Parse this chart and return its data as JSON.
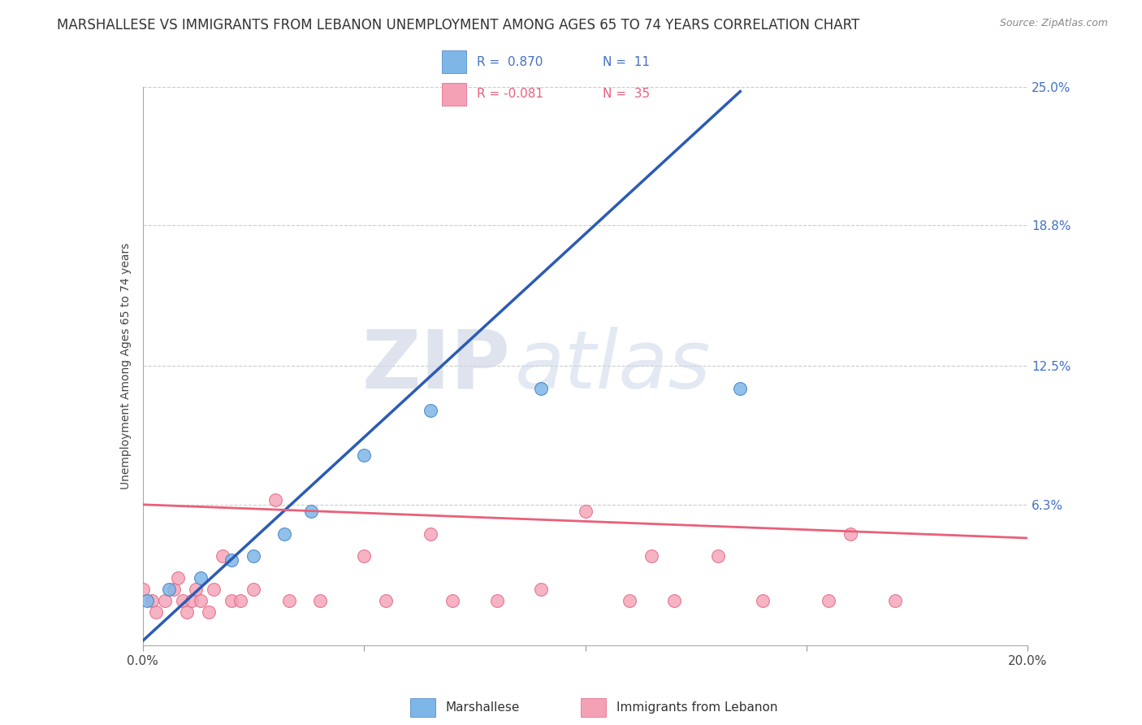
{
  "title": "MARSHALLESE VS IMMIGRANTS FROM LEBANON UNEMPLOYMENT AMONG AGES 65 TO 74 YEARS CORRELATION CHART",
  "source": "Source: ZipAtlas.com",
  "ylabel": "Unemployment Among Ages 65 to 74 years",
  "watermark_zip": "ZIP",
  "watermark_atlas": "atlas",
  "xlim": [
    0.0,
    0.2
  ],
  "ylim": [
    0.0,
    0.25
  ],
  "ytick_right_vals": [
    0.0,
    0.063,
    0.125,
    0.188,
    0.25
  ],
  "ytick_right_labels": [
    "",
    "6.3%",
    "12.5%",
    "18.8%",
    "25.0%"
  ],
  "marshallese_color": "#7EB6E8",
  "lebanon_color": "#F4A0B5",
  "trendline_blue": "#2B5BB5",
  "trendline_pink": "#E8607A",
  "legend_R1": "R =  0.870",
  "legend_N1": "N =  11",
  "legend_R2": "R = -0.081",
  "legend_N2": "N =  35",
  "marshallese_x": [
    0.001,
    0.006,
    0.013,
    0.02,
    0.025,
    0.032,
    0.038,
    0.05,
    0.065,
    0.09,
    0.135
  ],
  "marshallese_y": [
    0.02,
    0.025,
    0.03,
    0.038,
    0.04,
    0.05,
    0.06,
    0.085,
    0.105,
    0.115,
    0.115
  ],
  "lebanon_x": [
    0.0,
    0.002,
    0.003,
    0.005,
    0.007,
    0.008,
    0.009,
    0.01,
    0.011,
    0.012,
    0.013,
    0.015,
    0.016,
    0.018,
    0.02,
    0.022,
    0.025,
    0.03,
    0.033,
    0.04,
    0.05,
    0.055,
    0.065,
    0.07,
    0.08,
    0.09,
    0.1,
    0.11,
    0.115,
    0.12,
    0.13,
    0.14,
    0.155,
    0.16,
    0.17
  ],
  "lebanon_y": [
    0.025,
    0.02,
    0.015,
    0.02,
    0.025,
    0.03,
    0.02,
    0.015,
    0.02,
    0.025,
    0.02,
    0.015,
    0.025,
    0.04,
    0.02,
    0.02,
    0.025,
    0.065,
    0.02,
    0.02,
    0.04,
    0.02,
    0.05,
    0.02,
    0.02,
    0.025,
    0.06,
    0.02,
    0.04,
    0.02,
    0.04,
    0.02,
    0.02,
    0.05,
    0.02
  ],
  "trendline_m_x0": 0.0,
  "trendline_m_y0": 0.002,
  "trendline_m_x1": 0.135,
  "trendline_m_y1": 0.248,
  "trendline_l_x0": 0.0,
  "trendline_l_y0": 0.063,
  "trendline_l_x1": 0.2,
  "trendline_l_y1": 0.048,
  "background_color": "#FFFFFF",
  "grid_color": "#CCCCCC",
  "title_fontsize": 12,
  "label_fontsize": 10
}
